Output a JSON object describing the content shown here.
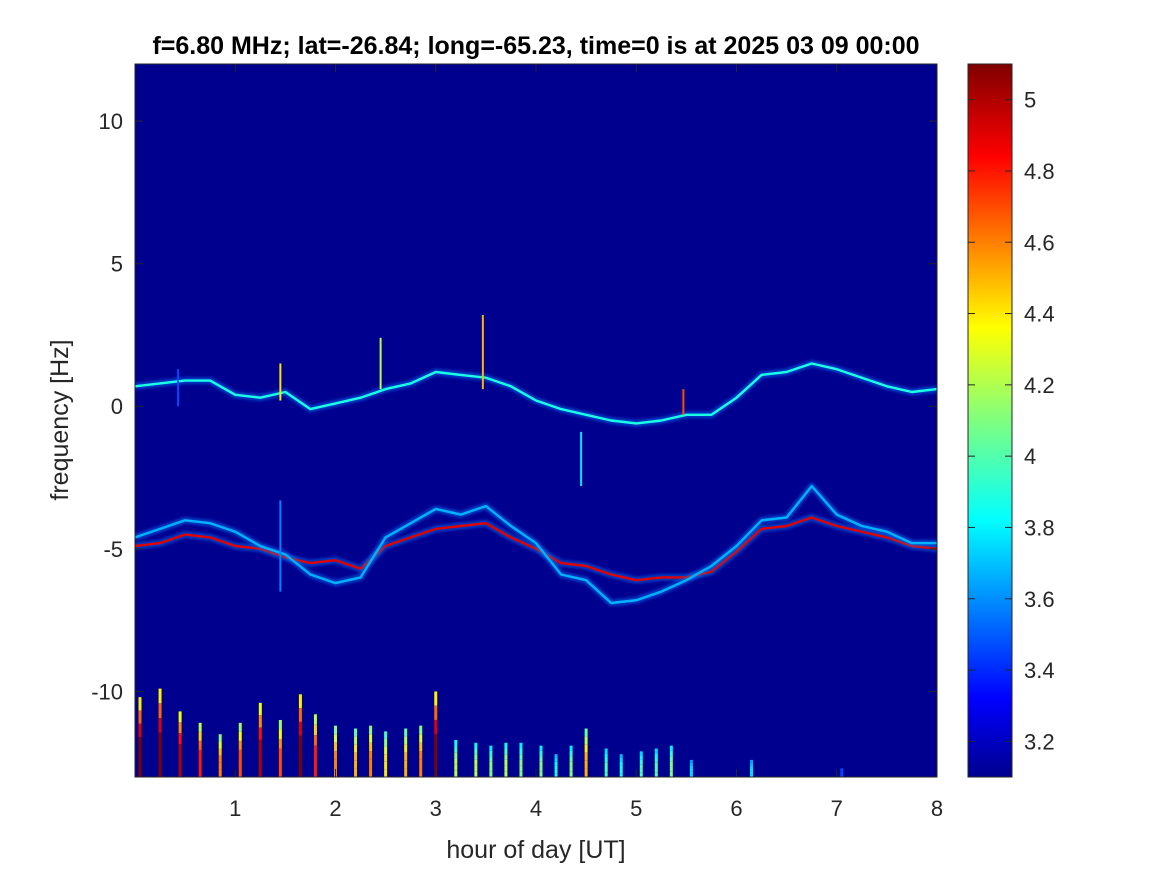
{
  "chart_data": {
    "type": "heatmap",
    "title": "f=6.80 MHz;  lat=-26.84; long=-65.23, time=0 is at 2025 03 09 00:00",
    "xlabel": "hour of day [UT]",
    "ylabel": "frequency [Hz]",
    "xlim": [
      0,
      8
    ],
    "ylim": [
      -13,
      12
    ],
    "x_ticks": [
      1,
      2,
      3,
      4,
      5,
      6,
      7,
      8
    ],
    "x_tick_labels": [
      "1",
      "2",
      "3",
      "4",
      "5",
      "6",
      "7",
      "8"
    ],
    "y_ticks": [
      10,
      5,
      0,
      -5,
      -10
    ],
    "y_tick_labels": [
      "10",
      "5",
      "0",
      "-5",
      "-10"
    ],
    "colormap": "jet",
    "clim": [
      3.1,
      5.1
    ],
    "colorbar_ticks": [
      5,
      4.8,
      4.6,
      4.4,
      4.2,
      4,
      3.8,
      3.6,
      3.4,
      3.2
    ],
    "colorbar_tick_labels": [
      "5",
      "4.8",
      "4.6",
      "4.4",
      "4.2",
      "4",
      "3.8",
      "3.6",
      "3.4",
      "3.2"
    ],
    "background_color": "#00008f",
    "traces": [
      {
        "name": "",
        "level": 3.9,
        "points": [
          [
            0.0,
            0.7
          ],
          [
            0.25,
            0.8
          ],
          [
            0.5,
            0.9
          ],
          [
            0.75,
            0.9
          ],
          [
            1.0,
            0.4
          ],
          [
            1.25,
            0.3
          ],
          [
            1.5,
            0.5
          ],
          [
            1.75,
            -0.1
          ],
          [
            2.0,
            0.1
          ],
          [
            2.25,
            0.3
          ],
          [
            2.5,
            0.6
          ],
          [
            2.75,
            0.8
          ],
          [
            3.0,
            1.2
          ],
          [
            3.25,
            1.1
          ],
          [
            3.5,
            1.0
          ],
          [
            3.75,
            0.7
          ],
          [
            4.0,
            0.2
          ],
          [
            4.25,
            -0.1
          ],
          [
            4.5,
            -0.3
          ],
          [
            4.75,
            -0.5
          ],
          [
            5.0,
            -0.6
          ],
          [
            5.25,
            -0.5
          ],
          [
            5.5,
            -0.3
          ],
          [
            5.75,
            -0.3
          ],
          [
            6.0,
            0.3
          ],
          [
            6.25,
            1.1
          ],
          [
            6.5,
            1.2
          ],
          [
            6.75,
            1.5
          ],
          [
            7.0,
            1.3
          ],
          [
            7.25,
            1.0
          ],
          [
            7.5,
            0.7
          ],
          [
            7.75,
            0.5
          ],
          [
            8.0,
            0.6
          ]
        ]
      },
      {
        "name": "",
        "level": 4.9,
        "points": [
          [
            0.0,
            -4.9
          ],
          [
            0.25,
            -4.8
          ],
          [
            0.5,
            -4.5
          ],
          [
            0.75,
            -4.6
          ],
          [
            1.0,
            -4.9
          ],
          [
            1.25,
            -5.0
          ],
          [
            1.5,
            -5.3
          ],
          [
            1.75,
            -5.5
          ],
          [
            2.0,
            -5.4
          ],
          [
            2.25,
            -5.7
          ],
          [
            2.5,
            -4.9
          ],
          [
            2.75,
            -4.6
          ],
          [
            3.0,
            -4.3
          ],
          [
            3.25,
            -4.2
          ],
          [
            3.5,
            -4.1
          ],
          [
            3.75,
            -4.6
          ],
          [
            4.0,
            -5.0
          ],
          [
            4.25,
            -5.5
          ],
          [
            4.5,
            -5.6
          ],
          [
            4.75,
            -5.9
          ],
          [
            5.0,
            -6.1
          ],
          [
            5.25,
            -6.0
          ],
          [
            5.5,
            -6.0
          ],
          [
            5.75,
            -5.8
          ],
          [
            6.0,
            -5.1
          ],
          [
            6.25,
            -4.3
          ],
          [
            6.5,
            -4.2
          ],
          [
            6.75,
            -3.9
          ],
          [
            7.0,
            -4.2
          ],
          [
            7.25,
            -4.4
          ],
          [
            7.5,
            -4.6
          ],
          [
            7.75,
            -4.9
          ],
          [
            8.0,
            -5.0
          ]
        ]
      },
      {
        "name": "",
        "level": 3.7,
        "points": [
          [
            0.0,
            -4.6
          ],
          [
            0.25,
            -4.3
          ],
          [
            0.5,
            -4.0
          ],
          [
            0.75,
            -4.1
          ],
          [
            1.0,
            -4.4
          ],
          [
            1.25,
            -4.9
          ],
          [
            1.5,
            -5.2
          ],
          [
            1.75,
            -5.9
          ],
          [
            2.0,
            -6.2
          ],
          [
            2.25,
            -6.0
          ],
          [
            2.5,
            -4.6
          ],
          [
            2.75,
            -4.1
          ],
          [
            3.0,
            -3.6
          ],
          [
            3.25,
            -3.8
          ],
          [
            3.5,
            -3.5
          ],
          [
            3.75,
            -4.2
          ],
          [
            4.0,
            -4.8
          ],
          [
            4.25,
            -5.9
          ],
          [
            4.5,
            -6.1
          ],
          [
            4.75,
            -6.9
          ],
          [
            5.0,
            -6.8
          ],
          [
            5.25,
            -6.5
          ],
          [
            5.5,
            -6.1
          ],
          [
            5.75,
            -5.6
          ],
          [
            6.0,
            -4.9
          ],
          [
            6.25,
            -4.0
          ],
          [
            6.5,
            -3.9
          ],
          [
            6.75,
            -2.8
          ],
          [
            7.0,
            -3.8
          ],
          [
            7.25,
            -4.2
          ],
          [
            7.5,
            -4.4
          ],
          [
            7.75,
            -4.8
          ],
          [
            8.0,
            -4.8
          ]
        ]
      }
    ],
    "streaks": [
      {
        "x": 0.05,
        "top": -10.2,
        "level": 5.1
      },
      {
        "x": 0.25,
        "top": -9.9,
        "level": 5.1
      },
      {
        "x": 0.45,
        "top": -10.7,
        "level": 5.0
      },
      {
        "x": 0.65,
        "top": -11.1,
        "level": 4.8
      },
      {
        "x": 0.85,
        "top": -11.5,
        "level": 4.6
      },
      {
        "x": 1.05,
        "top": -11.1,
        "level": 4.7
      },
      {
        "x": 1.25,
        "top": -10.4,
        "level": 5.0
      },
      {
        "x": 1.45,
        "top": -11.0,
        "level": 4.7
      },
      {
        "x": 1.65,
        "top": -10.1,
        "level": 5.1
      },
      {
        "x": 1.8,
        "top": -10.8,
        "level": 4.8
      },
      {
        "x": 2.0,
        "top": -11.2,
        "level": 4.6
      },
      {
        "x": 2.2,
        "top": -11.3,
        "level": 4.5
      },
      {
        "x": 2.35,
        "top": -11.2,
        "level": 4.6
      },
      {
        "x": 2.5,
        "top": -11.4,
        "level": 4.4
      },
      {
        "x": 2.7,
        "top": -11.3,
        "level": 4.5
      },
      {
        "x": 2.85,
        "top": -11.2,
        "level": 4.6
      },
      {
        "x": 3.0,
        "top": -10.0,
        "level": 5.1
      },
      {
        "x": 3.2,
        "top": -11.7,
        "level": 4.2
      },
      {
        "x": 3.4,
        "top": -11.8,
        "level": 4.2
      },
      {
        "x": 3.55,
        "top": -11.9,
        "level": 4.1
      },
      {
        "x": 3.7,
        "top": -11.8,
        "level": 4.2
      },
      {
        "x": 3.85,
        "top": -11.8,
        "level": 4.1
      },
      {
        "x": 4.05,
        "top": -11.9,
        "level": 4.1
      },
      {
        "x": 4.2,
        "top": -12.2,
        "level": 3.9
      },
      {
        "x": 4.35,
        "top": -11.9,
        "level": 4.1
      },
      {
        "x": 4.5,
        "top": -11.3,
        "level": 4.5
      },
      {
        "x": 4.7,
        "top": -12.0,
        "level": 4.0
      },
      {
        "x": 4.85,
        "top": -12.2,
        "level": 3.9
      },
      {
        "x": 5.05,
        "top": -12.1,
        "level": 4.0
      },
      {
        "x": 5.2,
        "top": -12.0,
        "level": 4.0
      },
      {
        "x": 5.35,
        "top": -11.9,
        "level": 4.1
      },
      {
        "x": 5.55,
        "top": -12.4,
        "level": 3.8
      },
      {
        "x": 6.15,
        "top": -12.4,
        "level": 3.8
      },
      {
        "x": 7.05,
        "top": -12.7,
        "level": 3.5
      }
    ],
    "faint_streaks": [
      {
        "x": 0.1,
        "top": -7.8
      },
      {
        "x": 0.35,
        "top": -8.1
      },
      {
        "x": 0.55,
        "top": -8.4
      },
      {
        "x": 0.75,
        "top": -8.6
      },
      {
        "x": 0.95,
        "top": -8.8
      },
      {
        "x": 1.15,
        "top": -9.0
      },
      {
        "x": 1.35,
        "top": -8.7
      },
      {
        "x": 1.55,
        "top": -8.4
      },
      {
        "x": 1.75,
        "top": -8.9
      },
      {
        "x": 1.95,
        "top": -9.2
      },
      {
        "x": 2.15,
        "top": -9.1
      },
      {
        "x": 2.3,
        "top": -9.4
      },
      {
        "x": 2.45,
        "top": -9.3
      },
      {
        "x": 2.6,
        "top": -9.2
      },
      {
        "x": 2.8,
        "top": -9.5
      },
      {
        "x": 2.95,
        "top": -9.6
      },
      {
        "x": 3.15,
        "top": -9.5
      },
      {
        "x": 3.3,
        "top": -9.7
      },
      {
        "x": 3.5,
        "top": -9.6
      },
      {
        "x": 3.65,
        "top": -9.8
      },
      {
        "x": 3.8,
        "top": -9.7
      },
      {
        "x": 3.95,
        "top": -9.9
      },
      {
        "x": 4.15,
        "top": -9.8
      },
      {
        "x": 4.3,
        "top": -10.0
      },
      {
        "x": 4.45,
        "top": -9.2
      },
      {
        "x": 4.6,
        "top": -10.1
      },
      {
        "x": 4.8,
        "top": -10.2
      },
      {
        "x": 5.0,
        "top": -10.1
      },
      {
        "x": 5.15,
        "top": -10.3
      },
      {
        "x": 5.3,
        "top": -10.2
      },
      {
        "x": 5.5,
        "top": -10.4
      },
      {
        "x": 5.65,
        "top": -10.5
      },
      {
        "x": 5.85,
        "top": -10.8
      },
      {
        "x": 6.05,
        "top": -11.0
      },
      {
        "x": 6.3,
        "top": -11.3
      },
      {
        "x": 6.55,
        "top": -11.6
      }
    ],
    "spikes": [
      {
        "x": 1.45,
        "y0": 0.2,
        "y1": 1.5,
        "level": 4.4
      },
      {
        "x": 2.45,
        "y0": 0.6,
        "y1": 2.4,
        "level": 4.2
      },
      {
        "x": 3.47,
        "y0": 0.6,
        "y1": 3.2,
        "level": 4.5
      },
      {
        "x": 4.45,
        "y0": -2.8,
        "y1": -0.9,
        "level": 3.8
      },
      {
        "x": 5.47,
        "y0": -0.3,
        "y1": 0.6,
        "level": 4.7
      },
      {
        "x": 1.45,
        "y0": -6.5,
        "y1": -3.3,
        "level": 3.6
      },
      {
        "x": 0.43,
        "y0": 0.0,
        "y1": 1.3,
        "level": 3.5
      }
    ]
  }
}
